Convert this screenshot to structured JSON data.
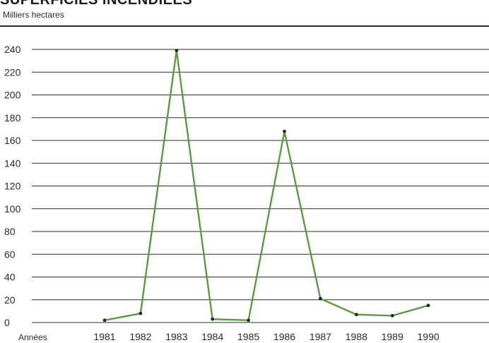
{
  "chart_data": {
    "type": "line",
    "title": "SUPERFICIES INCENDIEES",
    "subtitle": "Milliers hectares",
    "xlabel": "Années",
    "ylabel": "",
    "ylim": [
      0,
      240
    ],
    "yticks": [
      "240",
      "220",
      "200",
      "180",
      "160",
      "140",
      "120",
      "100",
      "80",
      "60",
      "40",
      "20",
      "0"
    ],
    "categories": [
      "1981",
      "1982",
      "1983",
      "1984",
      "1985",
      "1986",
      "1987",
      "1988",
      "1989",
      "1990"
    ],
    "series": [
      {
        "values": [
          2,
          8,
          239,
          3,
          2,
          168,
          21,
          7,
          6,
          15
        ]
      }
    ],
    "grid": true,
    "legend": "none",
    "colors": {
      "line": "#5b9a44",
      "marker": "#1f2a1a",
      "grid": "#2b2b2b",
      "text": "#2a2a2a"
    }
  }
}
